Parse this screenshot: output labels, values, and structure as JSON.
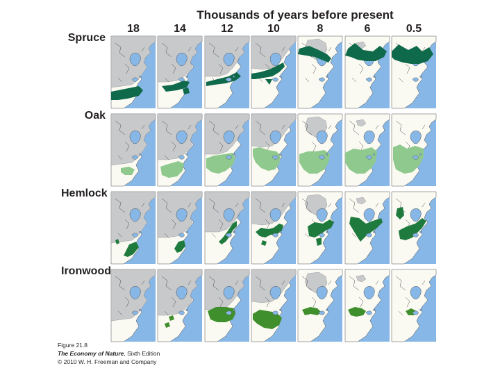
{
  "header": {
    "title": "Thousands of years before present"
  },
  "columns": [
    "18",
    "14",
    "12",
    "10",
    "8",
    "6",
    "0.5"
  ],
  "rows": [
    {
      "label": "Spruce",
      "color": "#0f6a4c",
      "coverage": [
        "se-band",
        "ne-band",
        "ne-band-north",
        "ne-arc",
        "canada-band",
        "boreal",
        "boreal"
      ]
    },
    {
      "label": "Oak",
      "color": "#8fc98e",
      "coverage": [
        "south-small",
        "southeast",
        "east-wide",
        "east-wide",
        "east-broad",
        "east-broad",
        "east-broad"
      ]
    },
    {
      "label": "Hemlock",
      "color": "#1f7a3e",
      "coverage": [
        "southeast-patch",
        "southeast-patch",
        "atlantic-coast",
        "great-lakes",
        "great-lakes-east",
        "lakes-appalachian",
        "lakes-appalachian"
      ]
    },
    {
      "label": "Ironwood",
      "color": "#3f8f2c",
      "coverage": [
        "none",
        "scattered",
        "midwest-broad",
        "midwest",
        "midwest-north",
        "great-lakes",
        "great-lakes"
      ]
    }
  ],
  "colors": {
    "ocean": "#87b7e6",
    "ice": "#c8c9cb",
    "land": "#fbfaf2",
    "coast": "#4a4a4a"
  },
  "caption": {
    "figure": "Figure 21.8",
    "book": "The Economy of Nature",
    "edition": ", Sixth Edition",
    "copyright": "© 2010 W. H. Freeman and Company"
  }
}
